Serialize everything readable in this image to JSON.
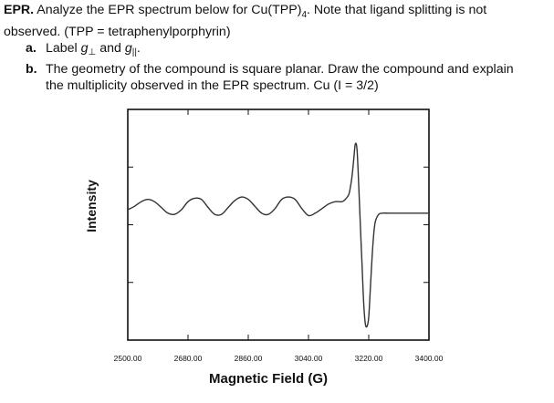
{
  "question": {
    "heading": "EPR.",
    "intro_line1": " Analyze the EPR spectrum below for Cu(TPP)",
    "intro_sub": "4",
    "intro_line1_end": ". Note that ligand splitting is not",
    "intro_line2": "observed. (TPP = tetraphenylporphyrin)",
    "part_a": {
      "marker": "a.",
      "text_before": "Label ",
      "g": "g",
      "perp_sub": "⊥",
      "and_text": " and ",
      "par_sub": "||",
      "text_after": "."
    },
    "part_b": {
      "marker": "b.",
      "line1": "The geometry of the compound is square planar. Draw the compound and explain",
      "line2": "the multiplicity observed in the EPR spectrum. Cu (I = 3/2)"
    }
  },
  "chart_data": {
    "type": "line",
    "title": "",
    "xlabel": "Magnetic Field (G)",
    "ylabel": "Intensity",
    "xlim": [
      2500,
      3400
    ],
    "ylim": [
      -1.0,
      1.0
    ],
    "x_ticks": [
      2500,
      2680,
      2860,
      3040,
      3220,
      3400
    ],
    "x_tick_labels": [
      "2500.00",
      "2680.00",
      "2860.00",
      "3040.00",
      "3220.00",
      "3400.00"
    ],
    "y_tick_labels_shown": false,
    "grid": false,
    "series": [
      {
        "color": "#333333",
        "x": [
          2500,
          2520,
          2540,
          2560,
          2580,
          2600,
          2620,
          2640,
          2660,
          2680,
          2700,
          2720,
          2740,
          2760,
          2780,
          2800,
          2820,
          2840,
          2860,
          2880,
          2900,
          2920,
          2940,
          2960,
          2980,
          3000,
          3020,
          3040,
          3060,
          3080,
          3100,
          3120,
          3140,
          3150,
          3160,
          3165,
          3170,
          3175,
          3180,
          3185,
          3190,
          3195,
          3200,
          3205,
          3210,
          3215,
          3220,
          3225,
          3230,
          3235,
          3240,
          3250,
          3260,
          3280,
          3300,
          3320,
          3340,
          3360,
          3380,
          3400
        ],
        "y": [
          0.13,
          0.16,
          0.2,
          0.22,
          0.2,
          0.15,
          0.1,
          0.09,
          0.13,
          0.2,
          0.23,
          0.22,
          0.15,
          0.09,
          0.09,
          0.15,
          0.21,
          0.24,
          0.22,
          0.16,
          0.1,
          0.09,
          0.14,
          0.22,
          0.24,
          0.22,
          0.14,
          0.08,
          0.1,
          0.14,
          0.18,
          0.2,
          0.2,
          0.22,
          0.26,
          0.32,
          0.42,
          0.56,
          0.7,
          0.65,
          0.35,
          0.0,
          -0.35,
          -0.68,
          -0.86,
          -0.88,
          -0.8,
          -0.55,
          -0.28,
          -0.08,
          0.03,
          0.09,
          0.1,
          0.1,
          0.1,
          0.1,
          0.1,
          0.1,
          0.1,
          0.1
        ]
      }
    ]
  }
}
